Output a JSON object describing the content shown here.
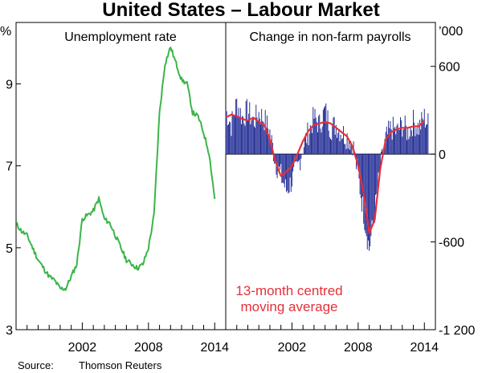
{
  "title": "United States – Labour Market",
  "source_label": "Source:",
  "source_value": "Thomson Reuters",
  "colors": {
    "unemployment_line": "#3bb54a",
    "payroll_bars": "#1f2a93",
    "moving_average_line": "#e5303a",
    "axis": "#000000"
  },
  "chart_data": [
    {
      "type": "line",
      "title": "Unemployment rate",
      "unit_label": "%",
      "y_axis_side": "left",
      "ylim": [
        3,
        10.5
      ],
      "y_ticks": [
        3,
        5,
        7,
        9
      ],
      "y_tick_labels": [
        "3",
        "5",
        "7",
        "9"
      ],
      "y_top_label": "%",
      "xlim": [
        1996.0,
        2015.0
      ],
      "x_ticks": [
        2002,
        2008,
        2014
      ],
      "x_tick_labels": [
        "2002",
        "2008",
        "2014"
      ],
      "series": [
        {
          "name": "Unemployment rate",
          "x": [
            1996.0,
            1996.5,
            1997.0,
            1997.5,
            1998.0,
            1998.5,
            1999.0,
            1999.5,
            2000.0,
            2000.5,
            2001.0,
            2001.5,
            2002.0,
            2002.5,
            2003.0,
            2003.5,
            2004.0,
            2004.5,
            2005.0,
            2005.5,
            2006.0,
            2006.5,
            2007.0,
            2007.5,
            2008.0,
            2008.5,
            2009.0,
            2009.5,
            2010.0,
            2010.5,
            2011.0,
            2011.5,
            2012.0,
            2012.5,
            2013.0,
            2013.5,
            2014.0
          ],
          "values": [
            5.6,
            5.4,
            5.3,
            5.0,
            4.7,
            4.5,
            4.3,
            4.2,
            4.0,
            4.0,
            4.3,
            4.6,
            5.7,
            5.8,
            5.9,
            6.2,
            5.7,
            5.6,
            5.3,
            5.0,
            4.7,
            4.6,
            4.5,
            4.6,
            5.0,
            5.8,
            8.3,
            9.5,
            9.9,
            9.5,
            9.1,
            9.0,
            8.3,
            8.2,
            7.8,
            7.3,
            6.2
          ]
        }
      ]
    },
    {
      "type": "bar",
      "title": "Change in non-farm payrolls",
      "unit_label": "'000",
      "y_axis_side": "right",
      "ylim": [
        -1200,
        900
      ],
      "y_ticks": [
        -1200,
        -600,
        0,
        600
      ],
      "y_tick_labels": [
        "-1 200",
        "-600",
        "0",
        "600"
      ],
      "y_top_label": "’000",
      "xlim": [
        1996.0,
        2015.0
      ],
      "x_ticks": [
        2002,
        2008,
        2014
      ],
      "x_tick_labels": [
        "2002",
        "2008",
        "2014"
      ],
      "annotation": "13-month centred moving average",
      "annotation_lines": [
        "13-month centred",
        "moving average"
      ],
      "series": [
        {
          "name": "Change in non-farm payrolls",
          "x": [
            1996.0,
            1996.5,
            1997.0,
            1997.5,
            1998.0,
            1998.5,
            1999.0,
            1999.5,
            2000.0,
            2000.5,
            2001.0,
            2001.5,
            2002.0,
            2002.5,
            2003.0,
            2003.5,
            2004.0,
            2004.5,
            2005.0,
            2005.5,
            2006.0,
            2006.5,
            2007.0,
            2007.5,
            2008.0,
            2008.5,
            2009.0,
            2009.5,
            2010.0,
            2010.5,
            2011.0,
            2011.5,
            2012.0,
            2012.5,
            2013.0,
            2013.5,
            2014.0,
            2014.4
          ],
          "values": [
            300,
            200,
            350,
            250,
            300,
            220,
            280,
            240,
            150,
            -50,
            -150,
            -250,
            -180,
            -100,
            50,
            150,
            250,
            200,
            300,
            180,
            200,
            150,
            120,
            80,
            -150,
            -400,
            -650,
            -400,
            -100,
            100,
            180,
            150,
            200,
            150,
            220,
            180,
            250,
            200
          ]
        },
        {
          "name": "13-month centred moving average",
          "x": [
            1996.0,
            1996.5,
            1997.0,
            1997.5,
            1998.0,
            1998.5,
            1999.0,
            1999.5,
            2000.0,
            2000.5,
            2001.0,
            2001.5,
            2002.0,
            2002.5,
            2003.0,
            2003.5,
            2004.0,
            2004.5,
            2005.0,
            2005.5,
            2006.0,
            2006.5,
            2007.0,
            2007.5,
            2008.0,
            2008.5,
            2009.0,
            2009.5,
            2010.0,
            2010.5,
            2011.0,
            2011.5,
            2012.0,
            2012.5,
            2013.0,
            2013.5,
            2014.0
          ],
          "values": [
            250,
            270,
            260,
            240,
            230,
            250,
            220,
            200,
            100,
            -50,
            -150,
            -120,
            -80,
            0,
            90,
            160,
            200,
            210,
            220,
            210,
            180,
            150,
            120,
            50,
            -80,
            -270,
            -540,
            -450,
            -100,
            100,
            150,
            170,
            180,
            180,
            190,
            190,
            230
          ]
        }
      ]
    }
  ]
}
